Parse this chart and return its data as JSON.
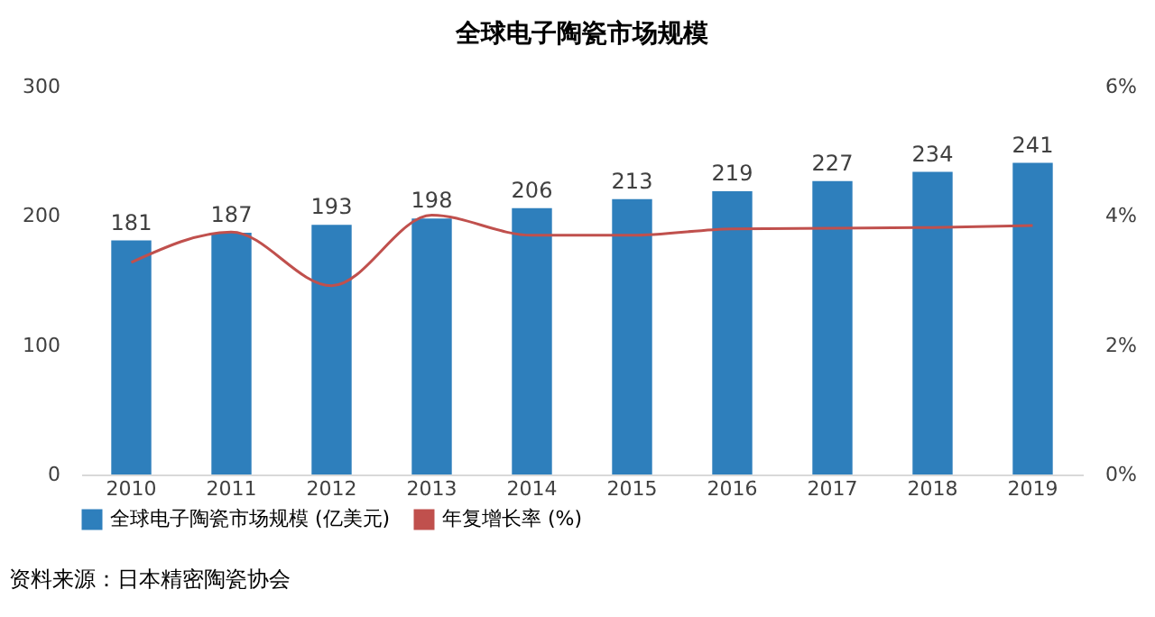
{
  "chart_data": {
    "type": "bar",
    "title": "全球电子陶瓷市场规模",
    "categories": [
      "2010",
      "2011",
      "2012",
      "2013",
      "2014",
      "2015",
      "2016",
      "2017",
      "2018",
      "2019"
    ],
    "series": [
      {
        "name": "全球电子陶瓷市场规模 (亿美元)",
        "color": "#2e7fbc",
        "values": [
          181,
          187,
          193,
          198,
          206,
          213,
          219,
          227,
          234,
          241
        ],
        "value_labels": [
          "181",
          "187",
          "193",
          "198",
          "206",
          "213",
          "219",
          "227",
          "234",
          "241"
        ]
      },
      {
        "name": "年复增长率 (%)",
        "type": "line",
        "axis": "y2",
        "color": "#c0504d",
        "values": [
          3.28,
          3.75,
          2.92,
          4.01,
          3.7,
          3.7,
          3.8,
          3.81,
          3.82,
          3.85
        ]
      }
    ],
    "ylim": [
      0,
      300
    ],
    "yticks": [
      0,
      100,
      200,
      300
    ],
    "y2lim": [
      0,
      6
    ],
    "y2ticks": [
      {
        "value": 0,
        "label": "0%"
      },
      {
        "value": 2,
        "label": "2%"
      },
      {
        "value": 4,
        "label": "4%"
      },
      {
        "value": 6,
        "label": "6%"
      }
    ],
    "grid": false,
    "legend": "bottom",
    "marker": "none",
    "line_style": "solid",
    "annotations": [
      "资料来源：日本精密陶瓷协会"
    ]
  }
}
